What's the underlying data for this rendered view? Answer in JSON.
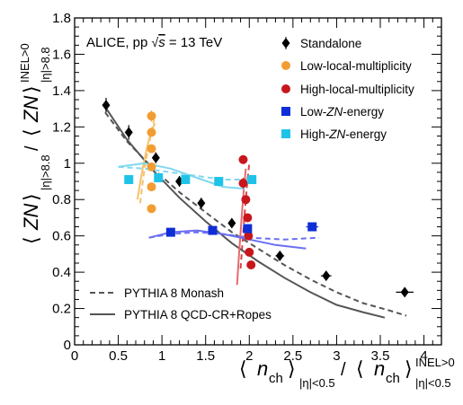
{
  "chart_data": {
    "type": "scatter",
    "title": "ALICE, pp √s = 13 TeV",
    "title_parts": {
      "main": "ALICE, pp ",
      "sqrt": "√",
      "s": "s",
      "rest": " = 13 TeV"
    },
    "xlabel": "⟨ n_ch ⟩_{|η|<0.5} / ⟨ n_ch ⟩^{INEL>0}_{|η|<0.5}",
    "xlabel_parts": {
      "open": "⟨",
      "n": "n",
      "ch": "ch",
      "close": "⟩",
      "eta": "|η|<0.5",
      "slash": "/",
      "inel": "INEL>0"
    },
    "ylabel": "⟨ ZN ⟩_{|η|>8.8} / ⟨ ZN ⟩^{INEL>0}_{|η|>8.8}",
    "ylabel_parts": {
      "open": "⟨",
      "zn": "ZN",
      "close": "⟩",
      "eta": "|η|>8.8",
      "slash": "/",
      "inel": "INEL>0"
    },
    "xlim": [
      0,
      4.2
    ],
    "ylim": [
      0,
      1.8
    ],
    "xticks": [
      0,
      0.5,
      1,
      1.5,
      2,
      2.5,
      3,
      3.5,
      4
    ],
    "xtick_labels": [
      "0",
      "0.5",
      "1",
      "1.5",
      "2",
      "2.5",
      "3",
      "3.5",
      "4"
    ],
    "yticks": [
      0,
      0.2,
      0.4,
      0.6,
      0.8,
      1,
      1.2,
      1.4,
      1.6,
      1.8
    ],
    "ytick_labels": [
      "0",
      "0.2",
      "0.4",
      "0.6",
      "0.8",
      "1",
      "1.2",
      "1.4",
      "1.6",
      "1.8"
    ],
    "grid": false,
    "legend_position": "top-right",
    "series": [
      {
        "name": "Standalone",
        "marker": "diamond",
        "color": "#000000",
        "points": [
          {
            "x": 0.36,
            "y": 1.32,
            "ex": 0.03,
            "ey": 0.04
          },
          {
            "x": 0.62,
            "y": 1.17,
            "ex": 0.03,
            "ey": 0.04
          },
          {
            "x": 0.93,
            "y": 1.03,
            "ex": 0.03,
            "ey": 0.03
          },
          {
            "x": 1.2,
            "y": 0.9,
            "ex": 0.04,
            "ey": 0.03
          },
          {
            "x": 1.45,
            "y": 0.78,
            "ex": 0.04,
            "ey": 0.03
          },
          {
            "x": 1.8,
            "y": 0.67,
            "ex": 0.04,
            "ey": 0.02
          },
          {
            "x": 2.35,
            "y": 0.49,
            "ex": 0.05,
            "ey": 0.02
          },
          {
            "x": 2.88,
            "y": 0.38,
            "ex": 0.06,
            "ey": 0.02
          },
          {
            "x": 3.78,
            "y": 0.29,
            "ex": 0.1,
            "ey": 0.02
          }
        ]
      },
      {
        "name": "Low-local-multiplicity",
        "marker": "circle",
        "color": "#f29d32",
        "points": [
          {
            "x": 0.88,
            "y": 1.26,
            "ex": 0.0,
            "ey": 0.03
          },
          {
            "x": 0.88,
            "y": 1.17,
            "ex": 0.0,
            "ey": 0.0
          },
          {
            "x": 0.88,
            "y": 1.08,
            "ex": 0.0,
            "ey": 0.0
          },
          {
            "x": 0.88,
            "y": 0.98,
            "ex": 0.0,
            "ey": 0.0
          },
          {
            "x": 0.88,
            "y": 0.87,
            "ex": 0.0,
            "ey": 0.0
          },
          {
            "x": 0.88,
            "y": 0.75,
            "ex": 0.0,
            "ey": 0.0
          }
        ]
      },
      {
        "name": "High-local-multiplicity",
        "marker": "circle",
        "color": "#c8161d",
        "points": [
          {
            "x": 1.93,
            "y": 1.02,
            "ex": 0.0,
            "ey": 0.0
          },
          {
            "x": 1.93,
            "y": 0.89,
            "ex": 0.0,
            "ey": 0.03
          },
          {
            "x": 1.96,
            "y": 0.8,
            "ex": 0.0,
            "ey": 0.0
          },
          {
            "x": 1.98,
            "y": 0.7,
            "ex": 0.0,
            "ey": 0.0
          },
          {
            "x": 1.99,
            "y": 0.6,
            "ex": 0.0,
            "ey": 0.0
          },
          {
            "x": 2.0,
            "y": 0.51,
            "ex": 0.0,
            "ey": 0.0
          },
          {
            "x": 2.02,
            "y": 0.44,
            "ex": 0.0,
            "ey": 0.0
          }
        ]
      },
      {
        "name": "Low-ZN-energy",
        "name_parts": {
          "pre": "Low-",
          "zn": "ZN",
          "post": "-energy"
        },
        "marker": "square",
        "color": "#0f2ed6",
        "points": [
          {
            "x": 1.1,
            "y": 0.62,
            "ex": 0.05,
            "ey": 0.0
          },
          {
            "x": 1.58,
            "y": 0.63,
            "ex": 0.05,
            "ey": 0.0
          },
          {
            "x": 1.98,
            "y": 0.64,
            "ex": 0.05,
            "ey": 0.0
          },
          {
            "x": 2.72,
            "y": 0.65,
            "ex": 0.07,
            "ey": 0.0
          }
        ]
      },
      {
        "name": "High-ZN-energy",
        "name_parts": {
          "pre": "High-",
          "zn": "ZN",
          "post": "-energy"
        },
        "marker": "square",
        "color": "#1fc3e8",
        "points": [
          {
            "x": 0.62,
            "y": 0.91,
            "ex": 0.04,
            "ey": 0.0
          },
          {
            "x": 0.96,
            "y": 0.92,
            "ex": 0.04,
            "ey": 0.0
          },
          {
            "x": 1.27,
            "y": 0.91,
            "ex": 0.04,
            "ey": 0.0
          },
          {
            "x": 1.65,
            "y": 0.9,
            "ex": 0.04,
            "ey": 0.0
          },
          {
            "x": 2.03,
            "y": 0.91,
            "ex": 0.04,
            "ey": 0.0
          }
        ]
      }
    ],
    "model_curves": [
      {
        "name": "PYTHIA 8 Monash",
        "style": "dashed",
        "curves": [
          {
            "color": "#555555",
            "x": [
              0.35,
              0.6,
              0.9,
              1.2,
              1.5,
              1.8,
              2.1,
              2.4,
              2.7,
              3.0,
              3.3,
              3.6,
              3.8
            ],
            "y": [
              1.28,
              1.12,
              0.97,
              0.84,
              0.73,
              0.62,
              0.53,
              0.44,
              0.36,
              0.29,
              0.23,
              0.19,
              0.16
            ]
          },
          {
            "color": "#f7c16b",
            "x": [
              0.75,
              0.78,
              0.81,
              0.85,
              0.88,
              0.91
            ],
            "y": [
              0.78,
              0.9,
              1.0,
              1.1,
              1.18,
              1.24
            ]
          },
          {
            "color": "#d9454a",
            "x": [
              1.9,
              1.92,
              1.94,
              1.96,
              1.98,
              2.0
            ],
            "y": [
              0.42,
              0.55,
              0.68,
              0.8,
              0.91,
              1.0
            ]
          },
          {
            "color": "#6a6ff2",
            "x": [
              0.85,
              1.1,
              1.4,
              1.7,
              2.0,
              2.4,
              2.8
            ],
            "y": [
              0.59,
              0.61,
              0.62,
              0.61,
              0.59,
              0.58,
              0.59
            ]
          },
          {
            "color": "#7fd8f0",
            "x": [
              0.5,
              0.8,
              1.1,
              1.4,
              1.7,
              2.0
            ],
            "y": [
              0.98,
              0.97,
              0.95,
              0.93,
              0.91,
              0.91
            ]
          }
        ]
      },
      {
        "name": "PYTHIA 8 QCD-CR+Ropes",
        "style": "solid",
        "curves": [
          {
            "color": "#555555",
            "x": [
              0.35,
              0.6,
              0.9,
              1.2,
              1.5,
              1.8,
              2.1,
              2.4,
              2.7,
              3.0,
              3.3,
              3.55
            ],
            "y": [
              1.31,
              1.13,
              0.96,
              0.81,
              0.68,
              0.56,
              0.46,
              0.37,
              0.29,
              0.22,
              0.18,
              0.15
            ]
          },
          {
            "color": "#f7c16b",
            "x": [
              0.72,
              0.76,
              0.8,
              0.84,
              0.88,
              0.92
            ],
            "y": [
              0.8,
              0.92,
              1.02,
              1.11,
              1.18,
              1.22
            ]
          },
          {
            "color": "#e46b6e",
            "x": [
              1.86,
              1.88,
              1.9,
              1.92,
              1.94,
              1.96
            ],
            "y": [
              0.33,
              0.48,
              0.62,
              0.75,
              0.87,
              0.97
            ]
          },
          {
            "color": "#6a6ff2",
            "x": [
              0.85,
              1.1,
              1.4,
              1.7,
              2.0,
              2.3,
              2.65
            ],
            "y": [
              0.59,
              0.62,
              0.63,
              0.61,
              0.58,
              0.55,
              0.53
            ]
          },
          {
            "color": "#7fd8f0",
            "x": [
              0.5,
              0.8,
              1.1,
              1.4,
              1.7,
              1.95
            ],
            "y": [
              0.98,
              1.0,
              0.97,
              0.92,
              0.87,
              0.86
            ]
          }
        ]
      }
    ]
  }
}
